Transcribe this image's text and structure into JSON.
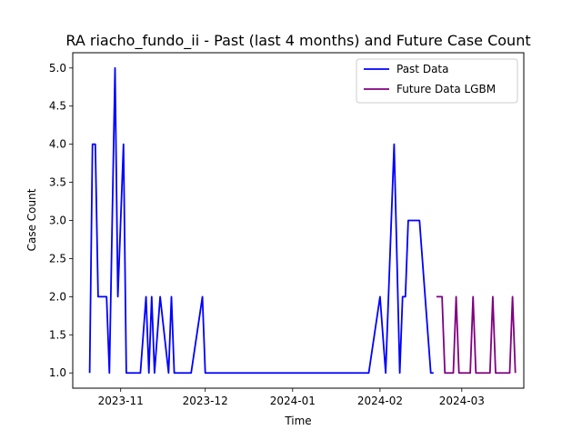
{
  "chart_data": {
    "type": "line",
    "title": "RA riacho_fundo_ii - Past (last 4 months) and Future Case Count",
    "xlabel": "Time",
    "ylabel": "Case Count",
    "x_ticks": [
      "2023-11",
      "2023-12",
      "2024-01",
      "2024-02",
      "2024-03"
    ],
    "y_ticks": [
      "1.0",
      "1.5",
      "2.0",
      "2.5",
      "3.0",
      "3.5",
      "4.0",
      "4.5",
      "5.0"
    ],
    "xlim": [
      "2023-10-15",
      "2024-03-23"
    ],
    "ylim": [
      0.8,
      5.2
    ],
    "grid": false,
    "legend_position": "top-right",
    "series": [
      {
        "name": "Past Data",
        "color": "#0000ff",
        "points": [
          [
            "2023-10-21",
            1
          ],
          [
            "2023-10-22",
            4
          ],
          [
            "2023-10-23",
            4
          ],
          [
            "2023-10-24",
            2
          ],
          [
            "2023-10-25",
            2
          ],
          [
            "2023-10-26",
            2
          ],
          [
            "2023-10-27",
            2
          ],
          [
            "2023-10-28",
            1
          ],
          [
            "2023-10-30",
            5
          ],
          [
            "2023-10-31",
            2
          ],
          [
            "2023-11-02",
            4
          ],
          [
            "2023-11-03",
            1
          ],
          [
            "2023-11-04",
            1
          ],
          [
            "2023-11-05",
            1
          ],
          [
            "2023-11-06",
            1
          ],
          [
            "2023-11-07",
            1
          ],
          [
            "2023-11-08",
            1
          ],
          [
            "2023-11-10",
            2
          ],
          [
            "2023-11-11",
            1
          ],
          [
            "2023-11-12",
            2
          ],
          [
            "2023-11-13",
            1
          ],
          [
            "2023-11-15",
            2
          ],
          [
            "2023-11-18",
            1
          ],
          [
            "2023-11-19",
            2
          ],
          [
            "2023-11-20",
            1
          ],
          [
            "2023-11-21",
            1
          ],
          [
            "2023-11-22",
            1
          ],
          [
            "2023-11-23",
            1
          ],
          [
            "2023-11-24",
            1
          ],
          [
            "2023-11-25",
            1
          ],
          [
            "2023-11-26",
            1
          ],
          [
            "2023-11-30",
            2
          ],
          [
            "2023-12-01",
            1
          ],
          [
            "2023-12-15",
            1
          ],
          [
            "2024-01-01",
            1
          ],
          [
            "2024-01-15",
            1
          ],
          [
            "2024-01-28",
            1
          ],
          [
            "2024-02-01",
            2
          ],
          [
            "2024-02-03",
            1
          ],
          [
            "2024-02-06",
            4
          ],
          [
            "2024-02-08",
            1
          ],
          [
            "2024-02-09",
            2
          ],
          [
            "2024-02-10",
            2
          ],
          [
            "2024-02-11",
            3
          ],
          [
            "2024-02-12",
            3
          ],
          [
            "2024-02-13",
            3
          ],
          [
            "2024-02-14",
            3
          ],
          [
            "2024-02-15",
            3
          ],
          [
            "2024-02-19",
            1
          ],
          [
            "2024-02-20",
            1
          ]
        ]
      },
      {
        "name": "Future Data LGBM",
        "color": "#800080",
        "points": [
          [
            "2024-02-21",
            2
          ],
          [
            "2024-02-22",
            2
          ],
          [
            "2024-02-23",
            2
          ],
          [
            "2024-02-24",
            1
          ],
          [
            "2024-02-25",
            1
          ],
          [
            "2024-02-26",
            1
          ],
          [
            "2024-02-27",
            1
          ],
          [
            "2024-02-28",
            2
          ],
          [
            "2024-02-29",
            1
          ],
          [
            "2024-03-01",
            1
          ],
          [
            "2024-03-02",
            1
          ],
          [
            "2024-03-03",
            1
          ],
          [
            "2024-03-04",
            1
          ],
          [
            "2024-03-05",
            2
          ],
          [
            "2024-03-06",
            1
          ],
          [
            "2024-03-07",
            1
          ],
          [
            "2024-03-08",
            1
          ],
          [
            "2024-03-09",
            1
          ],
          [
            "2024-03-10",
            1
          ],
          [
            "2024-03-11",
            1
          ],
          [
            "2024-03-12",
            2
          ],
          [
            "2024-03-13",
            1
          ],
          [
            "2024-03-14",
            1
          ],
          [
            "2024-03-15",
            1
          ],
          [
            "2024-03-16",
            1
          ],
          [
            "2024-03-17",
            1
          ],
          [
            "2024-03-18",
            1
          ],
          [
            "2024-03-19",
            2
          ],
          [
            "2024-03-20",
            1
          ]
        ]
      }
    ]
  }
}
